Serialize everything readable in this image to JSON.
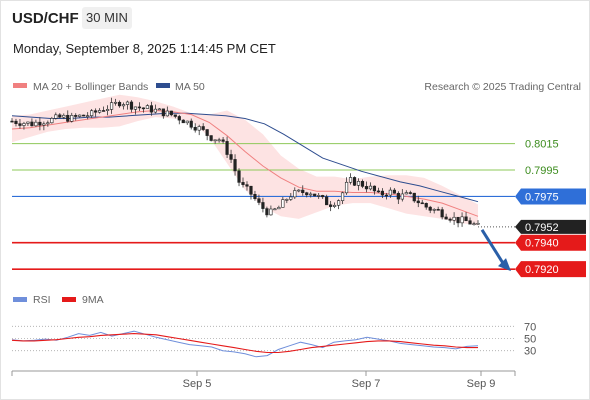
{
  "header": {
    "symbol": "USD/CHF",
    "timeframe": "30 MIN",
    "datetime": "Monday, September 8, 2025 1:14:45 PM CET"
  },
  "legend": {
    "ma20_label": "MA 20 + Bollinger Bands",
    "ma50_label": "MA 50",
    "copyright": "Research © 2025 Trading Central",
    "rsi_label": "RSI",
    "rsi_ma_label": "9MA"
  },
  "colors": {
    "ma20": "#f08080",
    "bands_fill": "#fde3e3",
    "ma50": "#2e4d8f",
    "resistance": "#8ec85a",
    "resistance_text": "#3c8c1e",
    "pivot": "#2f6fd8",
    "support": "#e51a1a",
    "current": "#222222",
    "rsi": "#6f8fdb",
    "rsi_ma": "#e51a1a",
    "arrow": "#2a5fa8"
  },
  "chart_data": [
    {
      "type": "candlestick",
      "title": "USD/CHF",
      "ylim": [
        0.7908,
        0.8051
      ],
      "x_ticks": [
        "Sep 5",
        "Sep 7",
        "Sep 9"
      ],
      "levels": [
        {
          "role": "resistance",
          "value": "0.8015"
        },
        {
          "role": "resistance",
          "value": "0.7995"
        },
        {
          "role": "pivot",
          "value": "0.7975"
        },
        {
          "role": "current",
          "value": "0.7952"
        },
        {
          "role": "support",
          "value": "0.7940"
        },
        {
          "role": "support",
          "value": "0.7920"
        }
      ],
      "projection": {
        "from": 0.7952,
        "to": 0.792,
        "direction": "down"
      },
      "close_path": [
        0.8032,
        0.8031,
        0.803,
        0.8032,
        0.8033,
        0.8035,
        0.8034,
        0.8036,
        0.8037,
        0.8041,
        0.8043,
        0.8047,
        0.8044,
        0.8042,
        0.8041,
        0.8039,
        0.8037,
        0.8034,
        0.803,
        0.8026,
        0.802,
        0.8018,
        0.8005,
        0.7984,
        0.7978,
        0.7968,
        0.7962,
        0.7967,
        0.7976,
        0.7978,
        0.7979,
        0.7974,
        0.7969,
        0.7973,
        0.7987,
        0.7985,
        0.7982,
        0.7976,
        0.7979,
        0.7975,
        0.7976,
        0.7971,
        0.7966,
        0.7964,
        0.796,
        0.7957,
        0.7956,
        0.7952
      ],
      "ma20_path": [
        0.8026,
        0.8027,
        0.8029,
        0.8031,
        0.8033,
        0.8035,
        0.8037,
        0.8039,
        0.804,
        0.8039,
        0.8037,
        0.8031,
        0.8021,
        0.8009,
        0.7998,
        0.7989,
        0.7982,
        0.7979,
        0.7979,
        0.7978,
        0.7978,
        0.7977,
        0.7975,
        0.7973,
        0.797,
        0.7965,
        0.796
      ],
      "band_upper": [
        0.8036,
        0.8037,
        0.804,
        0.8043,
        0.8046,
        0.8049,
        0.8052,
        0.805,
        0.8047,
        0.8043,
        0.8038,
        0.8037,
        0.804,
        0.8033,
        0.8022,
        0.8006,
        0.7996,
        0.799,
        0.799,
        0.7988,
        0.799,
        0.7991,
        0.7991,
        0.7989,
        0.7983,
        0.7976,
        0.7969
      ],
      "band_lower": [
        0.8016,
        0.802,
        0.8024,
        0.8026,
        0.8027,
        0.8027,
        0.8028,
        0.8032,
        0.8035,
        0.8034,
        0.8032,
        0.802,
        0.8,
        0.798,
        0.7967,
        0.796,
        0.7958,
        0.7963,
        0.7968,
        0.797,
        0.797,
        0.7966,
        0.7962,
        0.796,
        0.7958,
        0.7955,
        0.7953
      ],
      "ma50_path": [
        0.8036,
        0.8035,
        0.8034,
        0.8034,
        0.8035,
        0.8035,
        0.8036,
        0.8037,
        0.8038,
        0.8038,
        0.8037,
        0.8036,
        0.8034,
        0.803,
        0.8022,
        0.8013,
        0.8004,
        0.7999,
        0.7994,
        0.799,
        0.7986,
        0.7983,
        0.7979,
        0.7975,
        0.7971
      ]
    },
    {
      "type": "line",
      "title": "RSI",
      "ylim": [
        0,
        100
      ],
      "y_ticks": [
        "70",
        "50",
        "30"
      ],
      "series": [
        {
          "name": "RSI",
          "values": [
            48,
            46,
            47,
            49,
            47,
            52,
            58,
            55,
            60,
            54,
            58,
            62,
            57,
            52,
            48,
            44,
            40,
            38,
            36,
            30,
            28,
            25,
            20,
            22,
            32,
            38,
            44,
            40,
            35,
            44,
            46,
            48,
            52,
            49,
            46,
            42,
            40,
            38,
            36,
            35,
            33,
            37,
            38
          ]
        },
        {
          "name": "9MA",
          "values": [
            47,
            46,
            46,
            47,
            48,
            50,
            52,
            53,
            55,
            56,
            57,
            58,
            57,
            56,
            53,
            50,
            47,
            44,
            41,
            38,
            35,
            32,
            29,
            27,
            27,
            29,
            32,
            35,
            37,
            39,
            41,
            43,
            45,
            46,
            46,
            45,
            43,
            41,
            39,
            38,
            36,
            35,
            35
          ]
        }
      ]
    }
  ]
}
